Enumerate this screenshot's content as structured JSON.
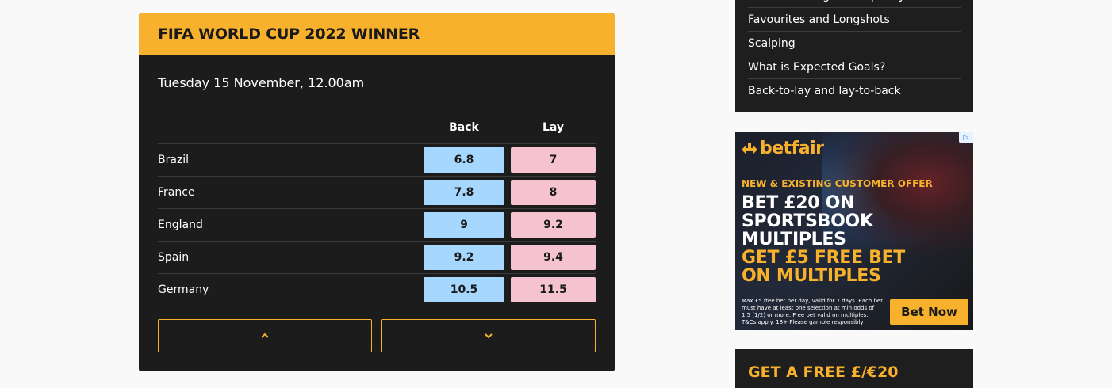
{
  "market": {
    "title": "FIFA WORLD CUP 2022 WINNER",
    "date": "Tuesday 15 November, 12.00am",
    "columns": {
      "back": "Back",
      "lay": "Lay"
    },
    "rows": [
      {
        "team": "Brazil",
        "back": "6.8",
        "lay": "7"
      },
      {
        "team": "France",
        "back": "7.8",
        "lay": "8"
      },
      {
        "team": "England",
        "back": "9",
        "lay": "9.2"
      },
      {
        "team": "Spain",
        "back": "9.2",
        "lay": "9.4"
      },
      {
        "team": "Germany",
        "back": "10.5",
        "lay": "11.5"
      }
    ],
    "pager": {
      "up_icon": "chevron-up-icon",
      "down_icon": "chevron-down-icon"
    },
    "colors": {
      "accent": "#f7b12c",
      "back": "#a6d8ff",
      "lay": "#f5c3cf",
      "panel": "#1c1c1c"
    }
  },
  "sidebar": {
    "links": [
      "Market Making and Liquidity",
      "Favourites and Longshots",
      "Scalping",
      "What is Expected Goals?",
      "Back-to-lay and lay-to-back"
    ]
  },
  "ad": {
    "adchoices_icon": "adchoices-icon",
    "logo_text": "betfair",
    "offer": "NEW & EXISTING CUSTOMER OFFER",
    "headline_white": [
      "BET £20 ON",
      "SPORTSBOOK",
      "MULTIPLES"
    ],
    "headline_gold": [
      "GET £5 FREE BET",
      "ON MULTIPLES"
    ],
    "terms": "Max £5 free bet per day, valid for 7 days. Each bet must have at least one selection at min odds of 1.5 (1/2) or more. Free bet valid on multiples. T&Cs apply. 18+ Please gamble responsibly",
    "cta": "Bet Now"
  },
  "promo": {
    "title": "GET A FREE £/€20"
  }
}
